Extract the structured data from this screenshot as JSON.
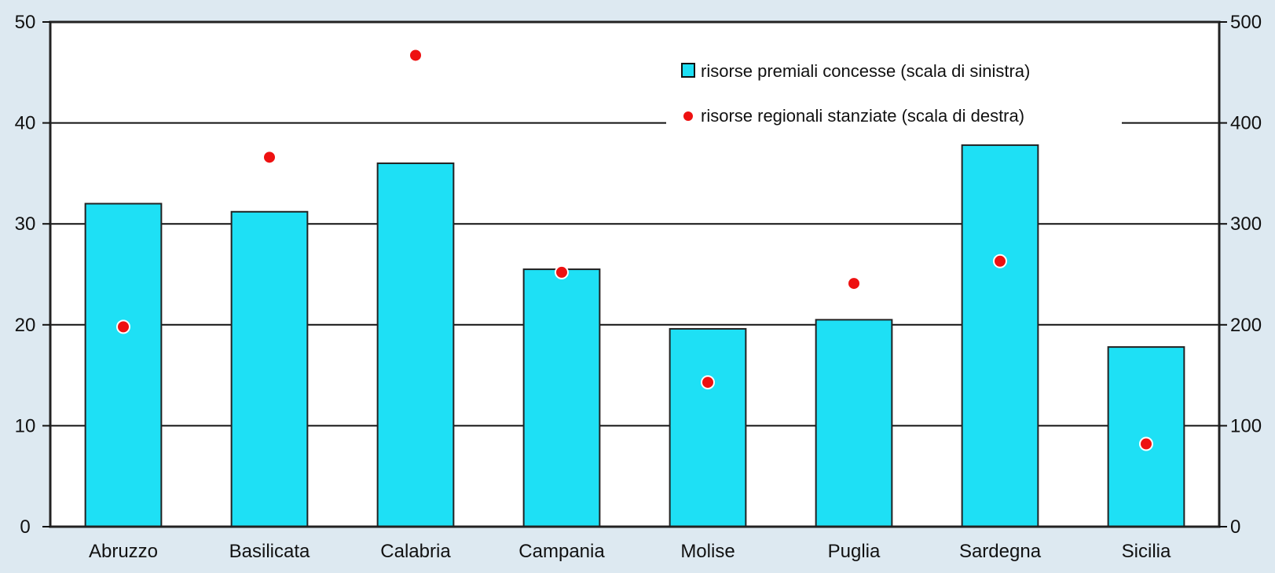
{
  "chart_data": {
    "type": "bar",
    "categories": [
      "Abruzzo",
      "Basilicata",
      "Calabria",
      "Campania",
      "Molise",
      "Puglia",
      "Sardegna",
      "Sicilia"
    ],
    "series": [
      {
        "name": "risorse premiali concesse (scala di sinistra)",
        "type": "bar",
        "axis": "left",
        "color": "#1ee0f5",
        "values": [
          32.0,
          31.2,
          36.0,
          25.5,
          19.6,
          20.5,
          37.8,
          17.8
        ]
      },
      {
        "name": "risorse regionali stanziate (scala di destra)",
        "type": "scatter",
        "axis": "right",
        "color": "#ee1111",
        "values": [
          198,
          366,
          467,
          252,
          143,
          241,
          263,
          82
        ]
      }
    ],
    "y_left": {
      "ylim": [
        0,
        50
      ],
      "ticks": [
        "0",
        "10",
        "20",
        "30",
        "40",
        "50"
      ]
    },
    "y_right": {
      "ylim": [
        0,
        500
      ],
      "ticks": [
        "0",
        "100",
        "200",
        "300",
        "400",
        "500"
      ]
    },
    "grid": true,
    "legend": "top-right",
    "title": "",
    "xlabel": "",
    "ylabel": ""
  }
}
